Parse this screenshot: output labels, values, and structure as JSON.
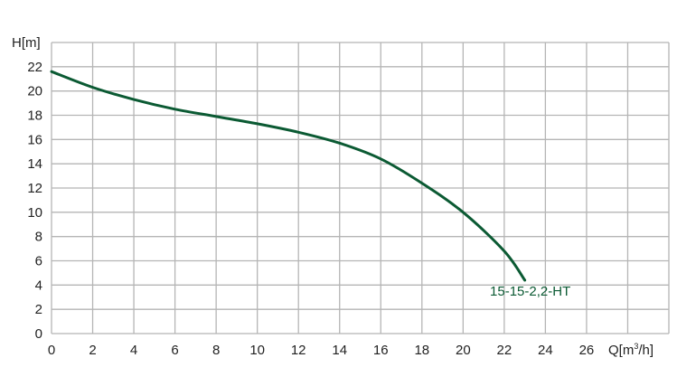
{
  "chart_data": {
    "type": "line",
    "title": "",
    "xlabel": "Q[m³/h]",
    "ylabel": "H[m]",
    "xlim": [
      0,
      30
    ],
    "ylim": [
      0,
      24
    ],
    "x_ticks": [
      "0",
      "2",
      "4",
      "6",
      "8",
      "10",
      "12",
      "14",
      "16",
      "18",
      "20",
      "22",
      "24",
      "26"
    ],
    "y_ticks": [
      "0",
      "2",
      "4",
      "6",
      "8",
      "10",
      "12",
      "14",
      "16",
      "18",
      "20",
      "22"
    ],
    "grid": true,
    "series": [
      {
        "name": "15-15-2,2-HT",
        "color": "#0b5a33",
        "x": [
          0,
          2,
          4,
          6,
          8,
          10,
          12,
          14,
          16,
          18,
          20,
          22,
          23
        ],
        "y": [
          21.6,
          20.3,
          19.3,
          18.5,
          17.9,
          17.3,
          16.6,
          15.7,
          14.4,
          12.4,
          10.0,
          6.8,
          4.4
        ]
      }
    ]
  }
}
